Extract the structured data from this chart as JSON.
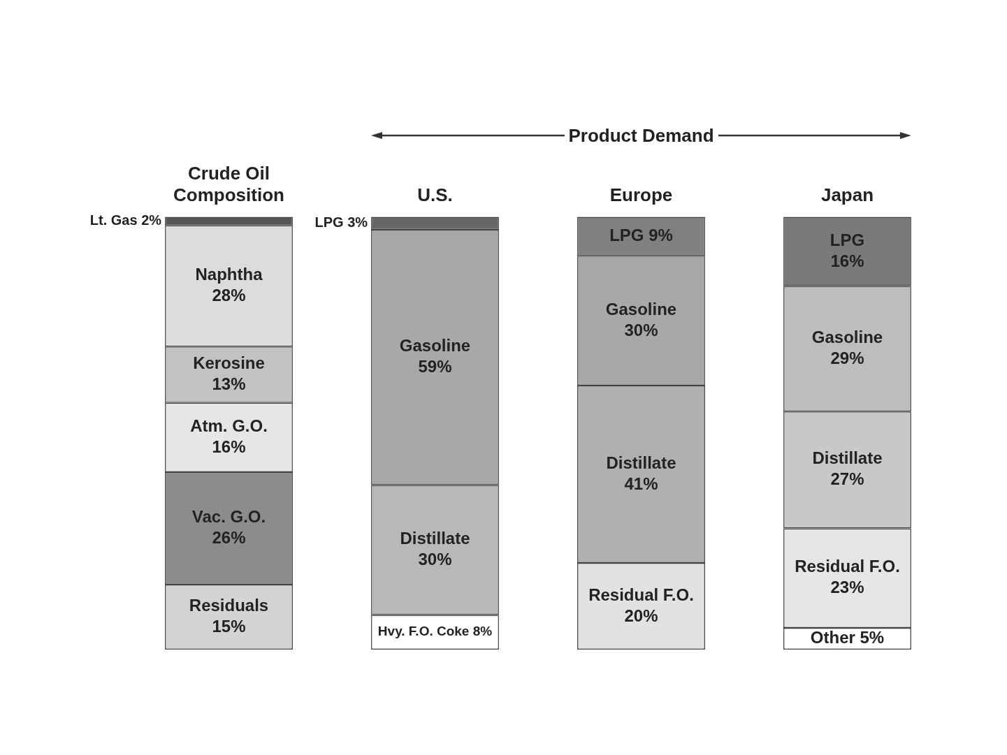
{
  "chart_data": {
    "type": "bar",
    "stacked": true,
    "legend": false,
    "grid": false,
    "categories": [
      "Crude Oil Composition",
      "U.S.",
      "Europe",
      "Japan"
    ],
    "annotations": [
      "Product Demand"
    ],
    "series": [
      {
        "name": "Other",
        "values": [
          null,
          null,
          null,
          5
        ],
        "colors": [
          null,
          null,
          null,
          "#ffffff"
        ],
        "value_labels": [
          null,
          null,
          null,
          "5%"
        ]
      },
      {
        "name": "Residuals",
        "values": [
          15,
          null,
          null,
          null
        ],
        "colors": [
          "#d4d4d4",
          null,
          null,
          null
        ],
        "value_labels": [
          "15%",
          null,
          null,
          null
        ]
      },
      {
        "name": "Hvy. F.O. Coke",
        "values": [
          null,
          8,
          null,
          null
        ],
        "colors": [
          null,
          "#ffffff",
          null,
          null
        ],
        "value_labels": [
          null,
          "8%",
          null,
          null
        ]
      },
      {
        "name": "Residual F.O.",
        "values": [
          null,
          null,
          20,
          23
        ],
        "colors": [
          null,
          null,
          "#e2e2e2",
          "#e6e6e6"
        ],
        "value_labels": [
          null,
          null,
          "20%",
          "23%"
        ]
      },
      {
        "name": "Vac. G.O.",
        "values": [
          26,
          null,
          null,
          null
        ],
        "colors": [
          "#8c8c8c",
          null,
          null,
          null
        ],
        "value_labels": [
          "26%",
          null,
          null,
          null
        ]
      },
      {
        "name": "Atm. G.O.",
        "values": [
          16,
          null,
          null,
          null
        ],
        "colors": [
          "#e6e6e6",
          null,
          null,
          null
        ],
        "value_labels": [
          "16%",
          null,
          null,
          null
        ]
      },
      {
        "name": "Kerosine",
        "values": [
          13,
          null,
          null,
          null
        ],
        "colors": [
          "#c2c2c2",
          null,
          null,
          null
        ],
        "value_labels": [
          "13%",
          null,
          null,
          null
        ]
      },
      {
        "name": "Distillate",
        "values": [
          null,
          30,
          41,
          27
        ],
        "colors": [
          null,
          "#b8b8b8",
          "#b0b0b0",
          "#c8c8c8"
        ],
        "value_labels": [
          null,
          "30%",
          "41%",
          "27%"
        ]
      },
      {
        "name": "Naphtha",
        "values": [
          28,
          null,
          null,
          null
        ],
        "colors": [
          "#dcdcdc",
          null,
          null,
          null
        ],
        "value_labels": [
          "28%",
          null,
          null,
          null
        ]
      },
      {
        "name": "Gasoline",
        "values": [
          null,
          59,
          30,
          29
        ],
        "colors": [
          null,
          "#a8a8a8",
          "#a8a8a8",
          "#bdbdbd"
        ],
        "value_labels": [
          null,
          "59%",
          "30%",
          "29%"
        ]
      },
      {
        "name": "Lt. Gas",
        "values": [
          2,
          null,
          null,
          null
        ],
        "colors": [
          "#555555",
          null,
          null,
          null
        ],
        "value_labels": [
          "2%",
          null,
          null,
          null
        ]
      },
      {
        "name": "LPG",
        "values": [
          null,
          3,
          9,
          16
        ],
        "colors": [
          null,
          "#666666",
          "#808080",
          "#7a7a7a"
        ],
        "value_labels": [
          null,
          "3%",
          "9%",
          "16%"
        ]
      }
    ]
  }
}
